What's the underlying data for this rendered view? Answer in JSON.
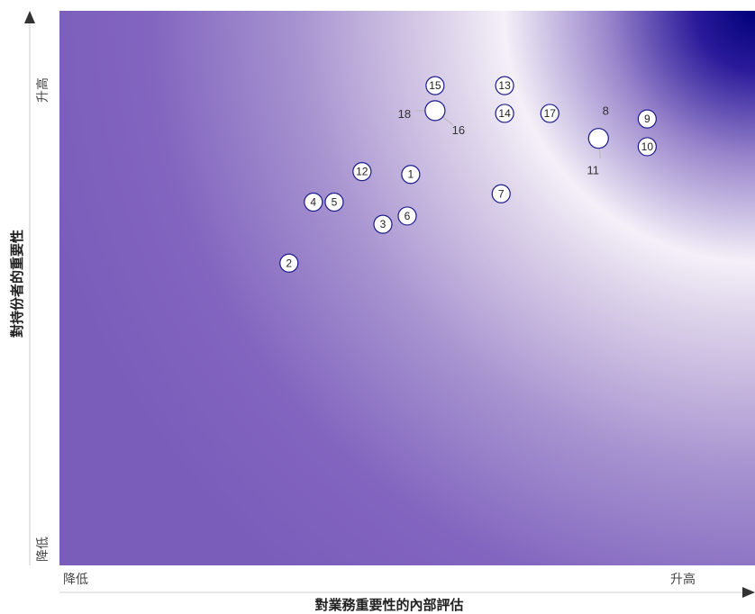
{
  "chart_data": {
    "type": "scatter",
    "xlabel": "對業務重要性的內部評估",
    "ylabel": "對持份者的重要性",
    "x_axis": {
      "low_label": "降低",
      "high_label": "升高"
    },
    "y_axis": {
      "low_label": "降低",
      "high_label": "升高"
    },
    "xlim": [
      0,
      100
    ],
    "ylim": [
      0,
      100
    ],
    "points": [
      {
        "id": "1",
        "x": 50.5,
        "y": 70.5,
        "label_position": "inside"
      },
      {
        "id": "2",
        "x": 33.0,
        "y": 54.5,
        "label_position": "inside"
      },
      {
        "id": "3",
        "x": 46.5,
        "y": 61.5,
        "label_position": "inside"
      },
      {
        "id": "4",
        "x": 36.5,
        "y": 65.5,
        "label_position": "inside"
      },
      {
        "id": "5",
        "x": 39.5,
        "y": 65.5,
        "label_position": "inside"
      },
      {
        "id": "6",
        "x": 50.0,
        "y": 63.0,
        "label_position": "inside"
      },
      {
        "id": "7",
        "x": 63.5,
        "y": 67.0,
        "label_position": "inside"
      },
      {
        "id": "8",
        "x": 77.5,
        "y": 77.0,
        "label_position": "outside"
      },
      {
        "id": "9",
        "x": 84.5,
        "y": 80.5,
        "label_position": "inside"
      },
      {
        "id": "10",
        "x": 84.5,
        "y": 75.5,
        "label_position": "inside"
      },
      {
        "id": "11",
        "x": 77.5,
        "y": 77.0,
        "label_position": "outside"
      },
      {
        "id": "12",
        "x": 43.5,
        "y": 71.0,
        "label_position": "inside"
      },
      {
        "id": "13",
        "x": 64.0,
        "y": 86.5,
        "label_position": "inside"
      },
      {
        "id": "14",
        "x": 64.0,
        "y": 81.5,
        "label_position": "inside"
      },
      {
        "id": "15",
        "x": 54.0,
        "y": 86.5,
        "label_position": "inside"
      },
      {
        "id": "16",
        "x": 54.0,
        "y": 82.0,
        "label_position": "outside"
      },
      {
        "id": "17",
        "x": 70.5,
        "y": 81.5,
        "label_position": "inside"
      },
      {
        "id": "18",
        "x": 54.0,
        "y": 82.0,
        "label_position": "outside"
      }
    ],
    "background": "gradient (purple to white to dark blue at top-right)",
    "grid": false,
    "legend": "none"
  },
  "colors": {
    "purple": "#8466c0",
    "light": "#e8e0f0",
    "white": "#ffffff",
    "dark_blue": "#00007a",
    "marker_fill": "#ffffff",
    "marker_stroke": "#1a1a8a"
  }
}
